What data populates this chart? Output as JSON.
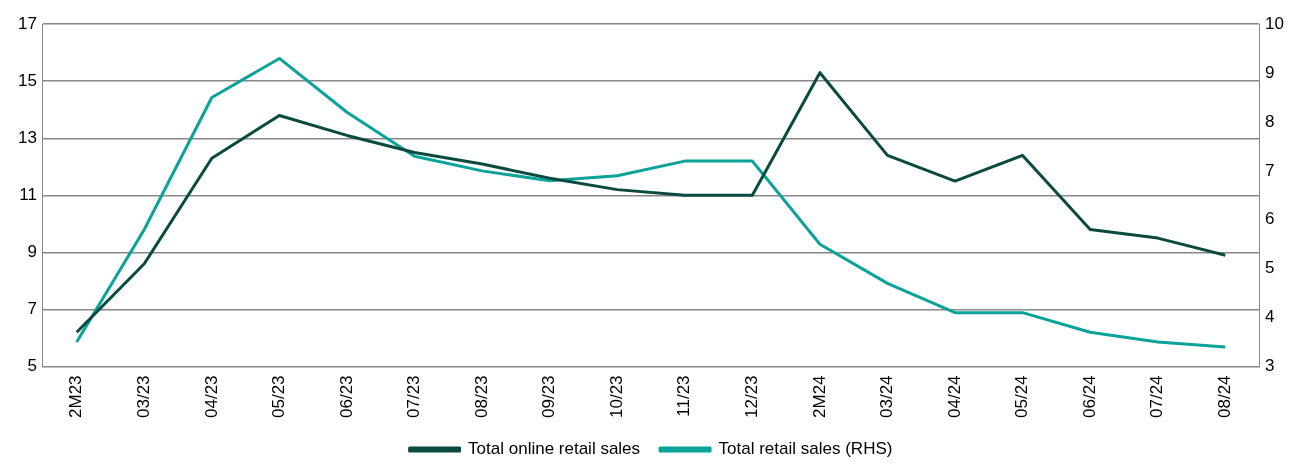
{
  "chart_data": {
    "type": "line",
    "categories": [
      "2M23",
      "03/23",
      "04/23",
      "05/23",
      "06/23",
      "07/23",
      "08/23",
      "09/23",
      "10/23",
      "11/23",
      "12/23",
      "2M24",
      "03/24",
      "04/24",
      "05/24",
      "06/24",
      "07/24",
      "08/24"
    ],
    "series": [
      {
        "name": "Total online retail sales",
        "color": "#0b4a3f",
        "values": [
          6.2,
          8.6,
          12.3,
          13.8,
          13.1,
          12.5,
          12.1,
          11.6,
          11.2,
          11.0,
          11.0,
          15.3,
          12.4,
          11.5,
          12.4,
          9.8,
          9.5,
          8.9
        ]
      },
      {
        "name": "Total retail sales (RHS)",
        "color": "#0aa39a",
        "axis": "y2",
        "values": [
          3.5,
          5.8,
          8.5,
          9.3,
          8.2,
          7.3,
          7.0,
          6.8,
          6.9,
          7.2,
          7.2,
          5.5,
          4.7,
          4.1,
          4.1,
          3.7,
          3.5,
          3.4
        ]
      }
    ],
    "ylim": [
      5,
      17
    ],
    "yticks": [
      5,
      7,
      9,
      11,
      13,
      15,
      17
    ],
    "y2lim": [
      3,
      10
    ],
    "y2ticks": [
      3,
      4,
      5,
      6,
      7,
      8,
      9,
      10
    ],
    "grid": "y",
    "legend": "bottom",
    "marker": "none",
    "line_style": "solid"
  }
}
